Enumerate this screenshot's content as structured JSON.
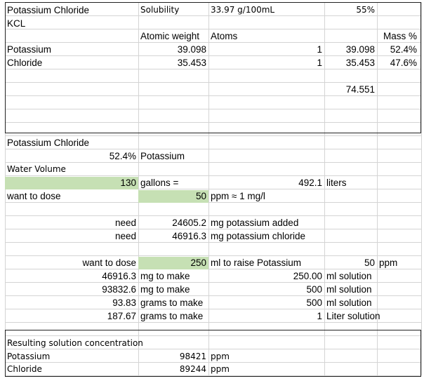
{
  "colors": {
    "input_fill": "#c6e0b4",
    "grid_line": "#d4d4d4",
    "frame": "#222222"
  },
  "sheet": {
    "title_row": {
      "name": "Potassium Chloride",
      "solubility_label": "Solubility",
      "solubility_value": "33.97 g/100mL",
      "percent": "55%"
    },
    "formula": "KCL",
    "headers": {
      "atomic_weight": "Atomic weight",
      "atoms": "Atoms",
      "mass_pct": "Mass %"
    },
    "elements": [
      {
        "name": "Potassium",
        "atomic_weight": "39.098",
        "atoms": "1",
        "weight_total": "39.098",
        "mass_pct": "52.4%"
      },
      {
        "name": "Chloride",
        "atomic_weight": "35.453",
        "atoms": "1",
        "weight_total": "35.453",
        "mass_pct": "47.6%"
      }
    ],
    "molar_total": "74.551",
    "section_title": "Potassium Chloride",
    "potassium_pct": {
      "value": "52.4%",
      "label": "Potassium"
    },
    "water_volume_label": "Water Volume",
    "volume": {
      "gallons": "130",
      "gallons_label": "gallons =",
      "liters": "492.1",
      "liters_label": "liters"
    },
    "dose": {
      "label": "want to dose",
      "ppm": "50",
      "unit": "ppm ≈ 1 mg/l"
    },
    "need": [
      {
        "label": "need",
        "value": "24605.2",
        "unit": "mg potassium added"
      },
      {
        "label": "need",
        "value": "46916.3",
        "unit": "mg potassium chloride"
      }
    ],
    "solution": {
      "label": "want to dose",
      "ml": "250",
      "ml_label": "ml to raise Potassium",
      "ppm": "50",
      "ppm_label": "ppm",
      "rows": [
        {
          "amount": "46916.3",
          "unit": "mg to make",
          "vol": "250.00",
          "vol_unit": "ml solution"
        },
        {
          "amount": "93832.6",
          "unit": "mg to make",
          "vol": "500",
          "vol_unit": "ml solution"
        },
        {
          "amount": "93.83",
          "unit": "grams to make",
          "vol": "500",
          "vol_unit": "ml solution"
        },
        {
          "amount": "187.67",
          "unit": "grams to make",
          "vol": "1",
          "vol_unit": "Liter solution"
        }
      ]
    },
    "result": {
      "title": "Resulting solution concentration",
      "rows": [
        {
          "name": "Potassium",
          "value": "98421",
          "unit": "ppm"
        },
        {
          "name": "Chloride",
          "value": "89244",
          "unit": "ppm"
        }
      ]
    }
  }
}
